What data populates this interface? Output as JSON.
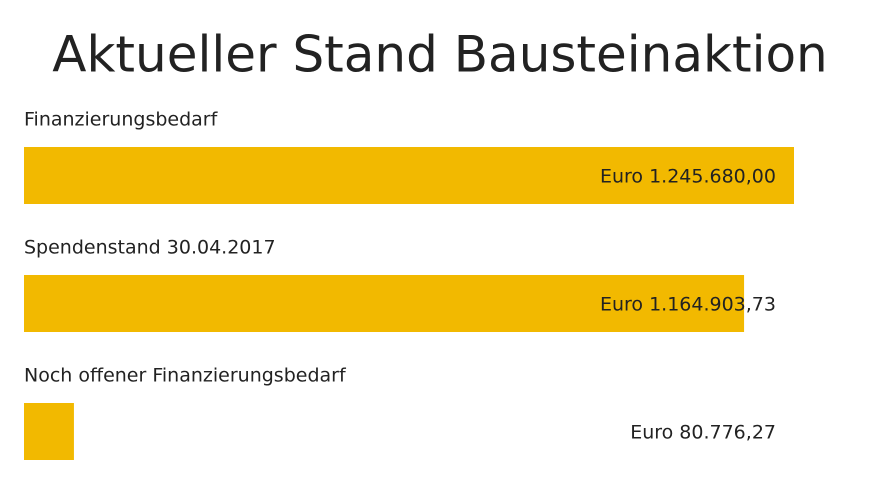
{
  "chart_data": {
    "type": "hbar",
    "title": "Aktueller Stand Bausteinaktion",
    "categories": [
      "Finanzierungsbedarf",
      "Spendenstand 30.04.2017",
      "Noch offener Finanzierungsbedarf"
    ],
    "values": [
      1245680.0,
      1164903.73,
      80776.27
    ],
    "value_labels": [
      "Euro 1.245.680,00",
      "Euro 1.164.903,73",
      "Euro 80.776,27"
    ],
    "color": "#f2b900"
  }
}
